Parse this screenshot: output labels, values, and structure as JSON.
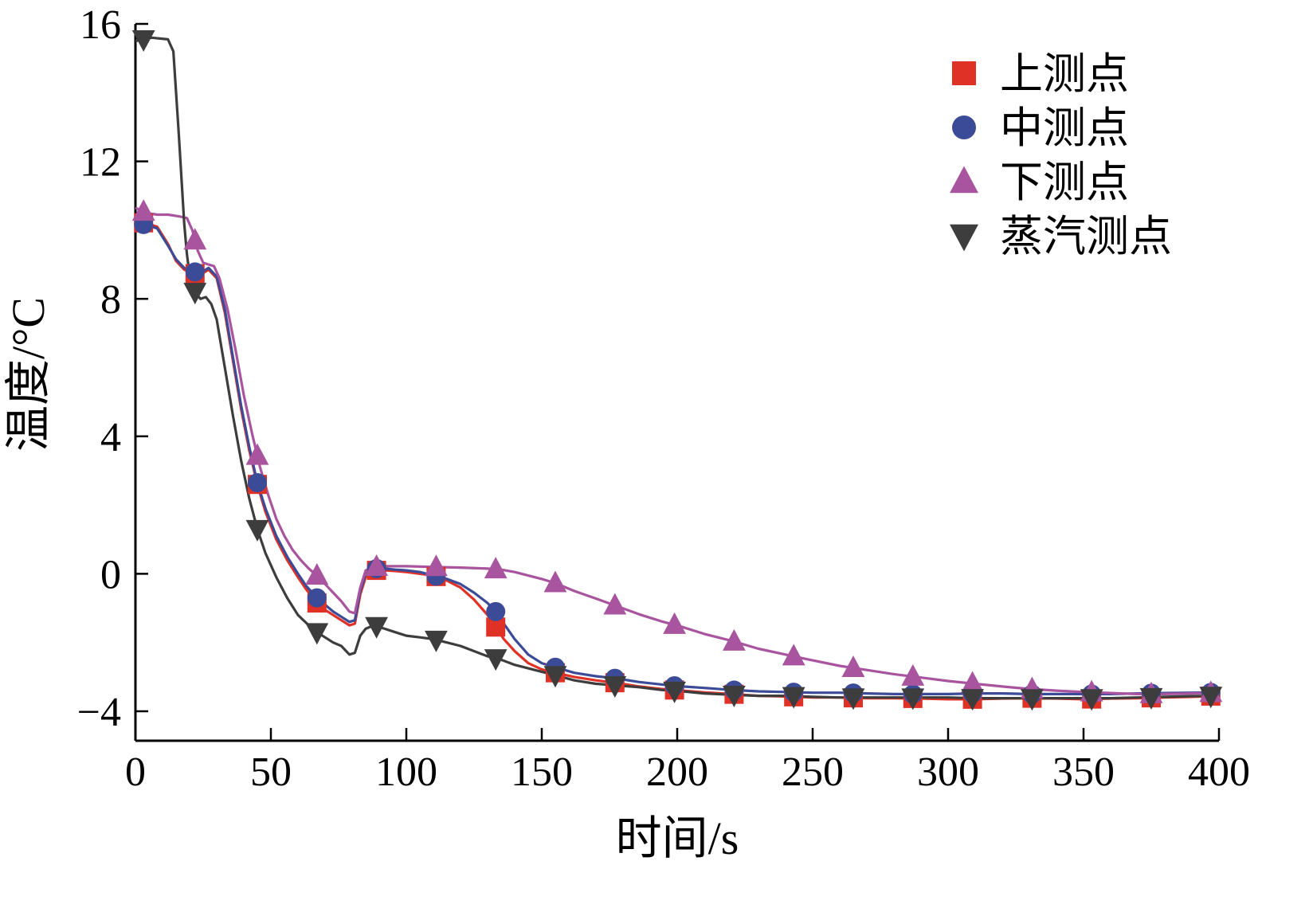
{
  "chart_data": {
    "type": "line",
    "title": "",
    "xlabel": "时间/s",
    "ylabel": "温度/°C",
    "xlim": [
      0,
      400
    ],
    "ylim": [
      -4.86,
      16
    ],
    "x_ticks": [
      0,
      50,
      100,
      150,
      200,
      250,
      300,
      350,
      400
    ],
    "y_ticks": [
      -4,
      0,
      4,
      8,
      12,
      16
    ],
    "grid": false,
    "legend_position": "top-right",
    "marker_x": [
      3,
      22,
      45,
      67,
      89,
      111,
      133,
      155,
      177,
      199,
      221,
      243,
      265,
      287,
      309,
      331,
      353,
      375,
      397
    ],
    "series": [
      {
        "name": "上测点",
        "color": "#e03127",
        "marker": "square",
        "points": [
          [
            0,
            10.25
          ],
          [
            4,
            10.2
          ],
          [
            8,
            10.1
          ],
          [
            12,
            9.6
          ],
          [
            15,
            9.1
          ],
          [
            18,
            8.85
          ],
          [
            21,
            8.75
          ],
          [
            24,
            8.7
          ],
          [
            27,
            8.85
          ],
          [
            30,
            8.6
          ],
          [
            33,
            7.6
          ],
          [
            36,
            6.2
          ],
          [
            39,
            4.8
          ],
          [
            42,
            3.6
          ],
          [
            45,
            2.6
          ],
          [
            48,
            1.8
          ],
          [
            52,
            1.0
          ],
          [
            56,
            0.4
          ],
          [
            60,
            -0.1
          ],
          [
            63,
            -0.45
          ],
          [
            67,
            -0.85
          ],
          [
            70,
            -1.05
          ],
          [
            73,
            -1.2
          ],
          [
            76,
            -1.35
          ],
          [
            79,
            -1.5
          ],
          [
            81,
            -1.45
          ],
          [
            83,
            -0.6
          ],
          [
            85,
            -0.1
          ],
          [
            88,
            0.1
          ],
          [
            92,
            0.1
          ],
          [
            96,
            0.08
          ],
          [
            100,
            0.05
          ],
          [
            105,
            0.0
          ],
          [
            110,
            -0.05
          ],
          [
            115,
            -0.2
          ],
          [
            120,
            -0.4
          ],
          [
            125,
            -0.75
          ],
          [
            130,
            -1.2
          ],
          [
            133,
            -1.55
          ],
          [
            136,
            -1.9
          ],
          [
            140,
            -2.25
          ],
          [
            145,
            -2.6
          ],
          [
            150,
            -2.78
          ],
          [
            155,
            -2.88
          ],
          [
            162,
            -3.0
          ],
          [
            170,
            -3.1
          ],
          [
            178,
            -3.18
          ],
          [
            186,
            -3.28
          ],
          [
            194,
            -3.35
          ],
          [
            202,
            -3.4
          ],
          [
            210,
            -3.45
          ],
          [
            220,
            -3.5
          ],
          [
            230,
            -3.55
          ],
          [
            240,
            -3.57
          ],
          [
            250,
            -3.6
          ],
          [
            260,
            -3.6
          ],
          [
            270,
            -3.62
          ],
          [
            280,
            -3.62
          ],
          [
            290,
            -3.63
          ],
          [
            300,
            -3.65
          ],
          [
            310,
            -3.65
          ],
          [
            320,
            -3.63
          ],
          [
            330,
            -3.62
          ],
          [
            340,
            -3.63
          ],
          [
            350,
            -3.65
          ],
          [
            360,
            -3.63
          ],
          [
            370,
            -3.62
          ],
          [
            380,
            -3.6
          ],
          [
            390,
            -3.58
          ],
          [
            400,
            -3.55
          ]
        ]
      },
      {
        "name": "中测点",
        "color": "#3c4b97",
        "marker": "circle",
        "points": [
          [
            0,
            10.2
          ],
          [
            4,
            10.15
          ],
          [
            8,
            10.05
          ],
          [
            12,
            9.55
          ],
          [
            15,
            9.15
          ],
          [
            18,
            8.9
          ],
          [
            21,
            8.8
          ],
          [
            24,
            8.75
          ],
          [
            27,
            8.9
          ],
          [
            30,
            8.65
          ],
          [
            33,
            7.7
          ],
          [
            36,
            6.3
          ],
          [
            39,
            4.9
          ],
          [
            42,
            3.7
          ],
          [
            45,
            2.65
          ],
          [
            48,
            1.9
          ],
          [
            52,
            1.1
          ],
          [
            56,
            0.5
          ],
          [
            60,
            0.0
          ],
          [
            63,
            -0.35
          ],
          [
            67,
            -0.7
          ],
          [
            70,
            -0.9
          ],
          [
            73,
            -1.1
          ],
          [
            76,
            -1.25
          ],
          [
            79,
            -1.4
          ],
          [
            81,
            -1.35
          ],
          [
            83,
            -0.5
          ],
          [
            85,
            0.0
          ],
          [
            88,
            0.15
          ],
          [
            92,
            0.15
          ],
          [
            96,
            0.12
          ],
          [
            100,
            0.1
          ],
          [
            105,
            0.05
          ],
          [
            110,
            -0.05
          ],
          [
            115,
            -0.15
          ],
          [
            120,
            -0.3
          ],
          [
            125,
            -0.55
          ],
          [
            130,
            -0.85
          ],
          [
            133,
            -1.1
          ],
          [
            136,
            -1.45
          ],
          [
            140,
            -1.9
          ],
          [
            145,
            -2.35
          ],
          [
            150,
            -2.6
          ],
          [
            155,
            -2.72
          ],
          [
            162,
            -2.88
          ],
          [
            170,
            -2.98
          ],
          [
            178,
            -3.05
          ],
          [
            186,
            -3.15
          ],
          [
            194,
            -3.22
          ],
          [
            202,
            -3.28
          ],
          [
            210,
            -3.32
          ],
          [
            220,
            -3.38
          ],
          [
            230,
            -3.42
          ],
          [
            240,
            -3.44
          ],
          [
            250,
            -3.46
          ],
          [
            260,
            -3.46
          ],
          [
            270,
            -3.48
          ],
          [
            280,
            -3.5
          ],
          [
            290,
            -3.5
          ],
          [
            300,
            -3.5
          ],
          [
            310,
            -3.48
          ],
          [
            320,
            -3.48
          ],
          [
            330,
            -3.5
          ],
          [
            340,
            -3.5
          ],
          [
            350,
            -3.5
          ],
          [
            360,
            -3.5
          ],
          [
            370,
            -3.48
          ],
          [
            380,
            -3.47
          ],
          [
            390,
            -3.46
          ],
          [
            400,
            -3.45
          ]
        ]
      },
      {
        "name": "下测点",
        "color": "#a8549e",
        "marker": "triangle-up",
        "points": [
          [
            0,
            10.65
          ],
          [
            4,
            10.5
          ],
          [
            8,
            10.45
          ],
          [
            12,
            10.45
          ],
          [
            16,
            10.4
          ],
          [
            19,
            10.35
          ],
          [
            21,
            10.0
          ],
          [
            23,
            9.4
          ],
          [
            25,
            9.05
          ],
          [
            27,
            9.0
          ],
          [
            29,
            8.95
          ],
          [
            31,
            8.6
          ],
          [
            34,
            7.7
          ],
          [
            37,
            6.5
          ],
          [
            40,
            5.2
          ],
          [
            43,
            4.1
          ],
          [
            46,
            3.1
          ],
          [
            49,
            2.3
          ],
          [
            52,
            1.6
          ],
          [
            55,
            1.1
          ],
          [
            58,
            0.7
          ],
          [
            61,
            0.4
          ],
          [
            64,
            0.15
          ],
          [
            67,
            -0.05
          ],
          [
            70,
            -0.3
          ],
          [
            73,
            -0.55
          ],
          [
            76,
            -0.8
          ],
          [
            79,
            -1.1
          ],
          [
            81,
            -1.15
          ],
          [
            83,
            -0.4
          ],
          [
            85,
            0.1
          ],
          [
            88,
            0.2
          ],
          [
            92,
            0.22
          ],
          [
            100,
            0.22
          ],
          [
            110,
            0.2
          ],
          [
            120,
            0.18
          ],
          [
            130,
            0.15
          ],
          [
            135,
            0.12
          ],
          [
            140,
            0.05
          ],
          [
            145,
            -0.05
          ],
          [
            150,
            -0.15
          ],
          [
            155,
            -0.27
          ],
          [
            162,
            -0.5
          ],
          [
            170,
            -0.72
          ],
          [
            178,
            -0.95
          ],
          [
            186,
            -1.18
          ],
          [
            194,
            -1.38
          ],
          [
            202,
            -1.55
          ],
          [
            210,
            -1.75
          ],
          [
            220,
            -1.95
          ],
          [
            230,
            -2.18
          ],
          [
            240,
            -2.35
          ],
          [
            250,
            -2.52
          ],
          [
            260,
            -2.68
          ],
          [
            270,
            -2.8
          ],
          [
            280,
            -2.92
          ],
          [
            290,
            -3.02
          ],
          [
            300,
            -3.12
          ],
          [
            310,
            -3.2
          ],
          [
            320,
            -3.28
          ],
          [
            330,
            -3.35
          ],
          [
            340,
            -3.4
          ],
          [
            350,
            -3.44
          ],
          [
            360,
            -3.47
          ],
          [
            370,
            -3.5
          ],
          [
            380,
            -3.5
          ],
          [
            390,
            -3.48
          ],
          [
            400,
            -3.46
          ]
        ]
      },
      {
        "name": "蒸汽测点",
        "color": "#3d3d3d",
        "marker": "triangle-down",
        "points": [
          [
            0,
            15.5
          ],
          [
            6,
            15.6
          ],
          [
            12,
            15.55
          ],
          [
            14,
            15.2
          ],
          [
            15,
            14.0
          ],
          [
            16,
            12.8
          ],
          [
            17,
            11.5
          ],
          [
            18,
            10.2
          ],
          [
            19,
            9.3
          ],
          [
            20,
            8.7
          ],
          [
            21,
            8.4
          ],
          [
            22,
            8.2
          ],
          [
            24,
            8.0
          ],
          [
            26,
            8.05
          ],
          [
            28,
            7.85
          ],
          [
            30,
            7.4
          ],
          [
            33,
            6.0
          ],
          [
            36,
            4.6
          ],
          [
            39,
            3.3
          ],
          [
            42,
            2.2
          ],
          [
            45,
            1.3
          ],
          [
            48,
            0.6
          ],
          [
            52,
            -0.1
          ],
          [
            56,
            -0.7
          ],
          [
            60,
            -1.2
          ],
          [
            64,
            -1.5
          ],
          [
            67,
            -1.7
          ],
          [
            70,
            -1.85
          ],
          [
            73,
            -2.0
          ],
          [
            76,
            -2.1
          ],
          [
            79,
            -2.35
          ],
          [
            81,
            -2.3
          ],
          [
            83,
            -1.8
          ],
          [
            85,
            -1.6
          ],
          [
            88,
            -1.5
          ],
          [
            92,
            -1.6
          ],
          [
            96,
            -1.7
          ],
          [
            100,
            -1.8
          ],
          [
            105,
            -1.85
          ],
          [
            110,
            -1.9
          ],
          [
            115,
            -2.0
          ],
          [
            120,
            -2.1
          ],
          [
            125,
            -2.25
          ],
          [
            130,
            -2.4
          ],
          [
            135,
            -2.5
          ],
          [
            140,
            -2.65
          ],
          [
            145,
            -2.75
          ],
          [
            150,
            -2.85
          ],
          [
            155,
            -2.95
          ],
          [
            162,
            -3.1
          ],
          [
            170,
            -3.2
          ],
          [
            178,
            -3.25
          ],
          [
            186,
            -3.3
          ],
          [
            194,
            -3.38
          ],
          [
            202,
            -3.42
          ],
          [
            210,
            -3.48
          ],
          [
            220,
            -3.52
          ],
          [
            230,
            -3.55
          ],
          [
            240,
            -3.55
          ],
          [
            250,
            -3.58
          ],
          [
            260,
            -3.6
          ],
          [
            270,
            -3.6
          ],
          [
            280,
            -3.6
          ],
          [
            290,
            -3.6
          ],
          [
            300,
            -3.6
          ],
          [
            310,
            -3.62
          ],
          [
            320,
            -3.62
          ],
          [
            330,
            -3.62
          ],
          [
            340,
            -3.62
          ],
          [
            350,
            -3.62
          ],
          [
            360,
            -3.62
          ],
          [
            370,
            -3.6
          ],
          [
            380,
            -3.58
          ],
          [
            390,
            -3.56
          ],
          [
            400,
            -3.55
          ]
        ]
      }
    ]
  }
}
